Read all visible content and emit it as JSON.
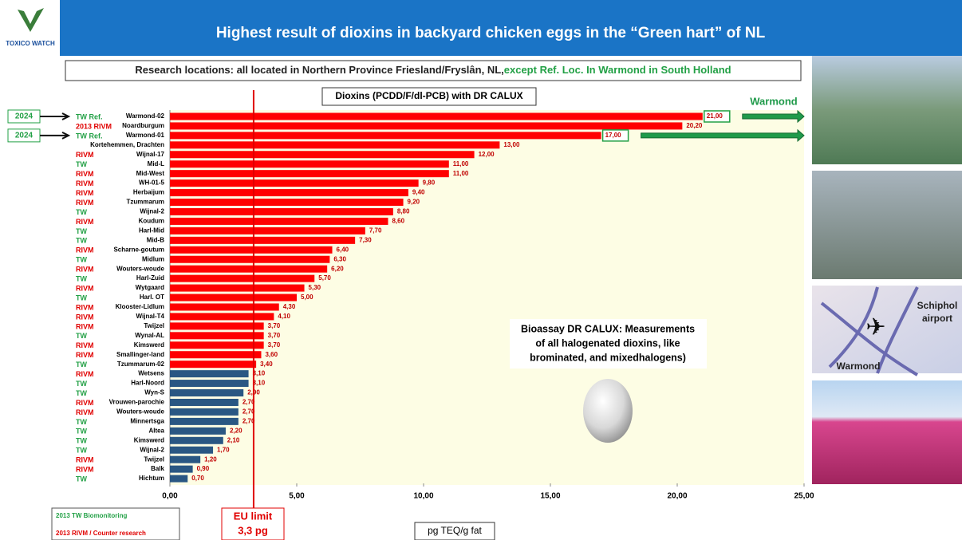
{
  "header": {
    "title": "Highest result of dioxins in backyard chicken eggs  in the “Green hart” of NL",
    "logo": "TOXICO WATCH",
    "subtitle": "Research  locations:  all located in Northern Province Friesland/Fryslân, NL,",
    "subtitle_highlight": "except Ref. Loc. In Warmond in South Holland"
  },
  "chart_data": {
    "type": "hbar",
    "title": "Dioxins (PCDD/F/dl-PCB) with DR CALUX",
    "x_label": "pg TEQ/g fat",
    "categories": [
      "Warmond-02",
      "Noardburgum",
      "Warmond-01",
      "Kortehemmen, Drachten",
      "Wijnal-17",
      "Mid-L",
      "Mid-West",
      "WH-01-5",
      "Herbaijum",
      "Tzummarum",
      "Wijnal-2",
      "Koudum",
      "Harl-Mid",
      "Mid-B",
      "Scharne-goutum",
      "Midlum",
      "Wouters-woude",
      "Harl-Zuid",
      "Wytgaard",
      "Harl. OT",
      "Klooster-Lidlum",
      "Wijnal-T4",
      "Twijzel",
      "Wynal-AL",
      "Kimswerd",
      "Smallinger-land",
      "Tzummarum-02",
      "Wetsens",
      "Harl-Noord",
      "Wyn-S",
      "Vrouwen-parochie",
      "Wouters-woude",
      "Minnertsga",
      "Altea",
      "Kimswerd",
      "Wijnal-2",
      "Twijzel",
      "Balk",
      "Hichtum"
    ],
    "values": [
      21,
      20.2,
      17,
      13,
      12,
      11,
      11,
      9.8,
      9.4,
      9.2,
      8.8,
      8.6,
      7.7,
      7.3,
      6.4,
      6.3,
      6.2,
      5.7,
      5.3,
      5,
      4.3,
      4.1,
      3.7,
      3.7,
      3.7,
      3.6,
      3.4,
      3.1,
      3.1,
      2.9,
      2.7,
      2.7,
      2.7,
      2.2,
      2.1,
      1.7,
      1.2,
      0.9,
      0.7
    ],
    "value_labels": [
      "21,00",
      "20,20",
      "17,00",
      "13,00",
      "12,00",
      "11,00",
      "11,00",
      "9,80",
      "9,40",
      "9,20",
      "8,80",
      "8,60",
      "7,70",
      "7,30",
      "6,40",
      "6,30",
      "6,20",
      "5,70",
      "5,30",
      "5,00",
      "4,30",
      "4,10",
      "3,70",
      "3,70",
      "3,70",
      "3,60",
      "3,40",
      "3,10",
      "3,10",
      "2,90",
      "2,70",
      "2,70",
      "2,70",
      "2,20",
      "2,10",
      "1,70",
      "1,20",
      "0,90",
      "0,70"
    ],
    "bar_colors": [
      "#ff0000",
      "#ff0000",
      "#ff0000",
      "#ff0000",
      "#ff0000",
      "#ff0000",
      "#ff0000",
      "#ff0000",
      "#ff0000",
      "#ff0000",
      "#ff0000",
      "#ff0000",
      "#ff0000",
      "#ff0000",
      "#ff0000",
      "#ff0000",
      "#ff0000",
      "#ff0000",
      "#ff0000",
      "#ff0000",
      "#ff0000",
      "#ff0000",
      "#ff0000",
      "#ff0000",
      "#ff0000",
      "#ff0000",
      "#ff0000",
      "#2a5783",
      "#2a5783",
      "#2a5783",
      "#2a5783",
      "#2a5783",
      "#2a5783",
      "#2a5783",
      "#2a5783",
      "#2a5783",
      "#2a5783",
      "#2a5783",
      "#2a5783"
    ],
    "sources": [
      "TW   Ref.",
      "2013 RIVM",
      "TW   Ref.",
      null,
      "RIVM",
      "TW",
      "RIVM",
      "RIVM",
      "RIVM",
      "RIVM",
      "TW",
      "RIVM",
      "TW",
      "TW",
      "RIVM",
      "TW",
      "RIVM",
      "TW",
      "RIVM",
      "TW",
      "RIVM",
      "RIVM",
      "RIVM",
      "TW",
      "RIVM",
      "RIVM",
      "TW",
      "RIVM",
      "TW",
      "TW",
      "RIVM",
      "RIVM",
      "TW",
      "TW",
      "TW",
      "TW",
      "RIVM",
      "RIVM",
      "TW"
    ],
    "source_colors": [
      "#22a045",
      "#e00000",
      "#22a045",
      null,
      "#e00000",
      "#22a045",
      "#e00000",
      "#e00000",
      "#e00000",
      "#e00000",
      "#22a045",
      "#e00000",
      "#22a045",
      "#22a045",
      "#e00000",
      "#22a045",
      "#e00000",
      "#22a045",
      "#e00000",
      "#22a045",
      "#e00000",
      "#e00000",
      "#e00000",
      "#22a045",
      "#e00000",
      "#e00000",
      "#22a045",
      "#e00000",
      "#22a045",
      "#22a045",
      "#e00000",
      "#e00000",
      "#22a045",
      "#22a045",
      "#22a045",
      "#22a045",
      "#e00000",
      "#e00000",
      "#22a045"
    ],
    "year_tags": [
      "2024",
      null,
      "2024",
      null,
      null,
      null,
      null,
      null,
      null,
      null,
      null,
      null,
      null,
      null,
      null,
      null,
      null,
      null,
      null,
      null,
      null,
      null,
      null,
      null,
      null,
      null,
      null,
      null,
      null,
      null,
      null,
      null,
      null,
      null,
      null,
      null,
      null,
      null,
      null
    ],
    "xlim": [
      0,
      25
    ],
    "xticks": [
      {
        "value": 0,
        "label": "0,00"
      },
      {
        "value": 5,
        "label": "5,00"
      },
      {
        "value": 10,
        "label": "10,00"
      },
      {
        "value": 15,
        "label": "15,00"
      },
      {
        "value": 20,
        "label": "20,00"
      },
      {
        "value": 25,
        "label": "25,00"
      }
    ],
    "eu_limit": {
      "value": 3.3,
      "label": "EU limit",
      "value_label": "3,3  pg"
    },
    "arrow_label": "Warmond",
    "annotation": [
      "Bioassay DR CALUX: Measurements",
      "of all  halogenated dioxins, like",
      "brominated, and mixedhalogens)"
    ],
    "legend": [
      "2013 TW Biomonitoring",
      "2013  RIVM / Counter research"
    ],
    "legend_colors": [
      "#22a045",
      "#e00000"
    ]
  },
  "photos": {
    "map_labels": [
      "Schiphol",
      "airport",
      "Warmond"
    ]
  }
}
